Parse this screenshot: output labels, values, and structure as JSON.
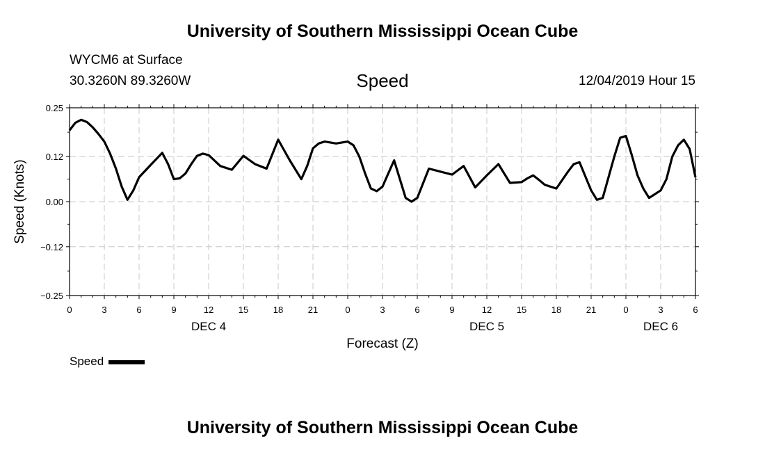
{
  "header": {
    "title": "University of Southern Mississippi Ocean Cube",
    "station": "WYCM6 at Surface",
    "location": "30.3260N 89.3260W",
    "date": "12/04/2019 Hour 15"
  },
  "footer": {
    "title": "University of Southern Mississippi Ocean Cube"
  },
  "legend": {
    "label": "Speed",
    "color": "#000000"
  },
  "chart_data": {
    "type": "line",
    "title": "Speed",
    "ylabel": "Speed (Knots)",
    "xlabel": "Forecast (Z)",
    "ylim": [
      -0.25,
      0.25
    ],
    "yticks": [
      0.25,
      0.12,
      0.0,
      -0.12,
      -0.25
    ],
    "ytick_labels": [
      "0.25",
      "0.12",
      "0.00",
      "−0.12",
      "−0.25"
    ],
    "xlim": [
      0,
      54
    ],
    "xticks": [
      0,
      3,
      6,
      9,
      12,
      15,
      18,
      21,
      24,
      27,
      30,
      33,
      36,
      39,
      42,
      45,
      48,
      51,
      54
    ],
    "xtick_labels": [
      "0",
      "3",
      "6",
      "9",
      "12",
      "15",
      "18",
      "21",
      "0",
      "3",
      "6",
      "9",
      "12",
      "15",
      "18",
      "21",
      "0",
      "3",
      "6"
    ],
    "day_labels": [
      {
        "x": 12,
        "label": "DEC 4"
      },
      {
        "x": 36,
        "label": "DEC 5"
      },
      {
        "x": 51,
        "label": "DEC 6"
      }
    ],
    "grid": true,
    "series": [
      {
        "name": "Speed",
        "x": [
          0,
          0.5,
          1,
          1.5,
          2,
          2.5,
          3,
          3.5,
          4,
          4.5,
          5,
          5.5,
          6,
          7,
          8,
          8.5,
          9,
          9.5,
          10,
          10.5,
          11,
          11.5,
          12,
          13,
          14,
          15,
          16,
          17,
          18,
          19,
          20,
          20.5,
          21,
          21.5,
          22,
          23,
          24,
          24.5,
          25,
          25.5,
          26,
          26.5,
          27,
          27.5,
          28,
          28.5,
          29,
          29.5,
          30,
          31,
          32,
          33,
          34,
          35,
          36,
          36.5,
          37,
          38,
          39,
          39.5,
          40,
          40.5,
          41,
          42,
          43,
          43.5,
          44,
          45,
          45.5,
          46,
          47,
          47.5,
          48,
          48.5,
          49,
          49.5,
          50,
          51,
          51.5,
          52,
          52.5,
          53,
          53.5,
          54
        ],
        "values": [
          0.19,
          0.21,
          0.218,
          0.212,
          0.198,
          0.18,
          0.16,
          0.128,
          0.088,
          0.04,
          0.005,
          0.03,
          0.065,
          0.098,
          0.13,
          0.1,
          0.06,
          0.062,
          0.075,
          0.1,
          0.122,
          0.128,
          0.124,
          0.095,
          0.085,
          0.122,
          0.1,
          0.088,
          0.165,
          0.11,
          0.06,
          0.095,
          0.142,
          0.155,
          0.16,
          0.155,
          0.16,
          0.15,
          0.12,
          0.075,
          0.035,
          0.028,
          0.04,
          0.075,
          0.11,
          0.06,
          0.01,
          0.0,
          0.01,
          0.088,
          0.08,
          0.072,
          0.095,
          0.038,
          0.07,
          0.085,
          0.1,
          0.05,
          0.052,
          0.062,
          0.07,
          0.058,
          0.045,
          0.035,
          0.08,
          0.1,
          0.105,
          0.03,
          0.005,
          0.01,
          0.12,
          0.17,
          0.175,
          0.125,
          0.07,
          0.035,
          0.01,
          0.03,
          0.06,
          0.12,
          0.15,
          0.165,
          0.14,
          0.065
        ]
      }
    ]
  }
}
